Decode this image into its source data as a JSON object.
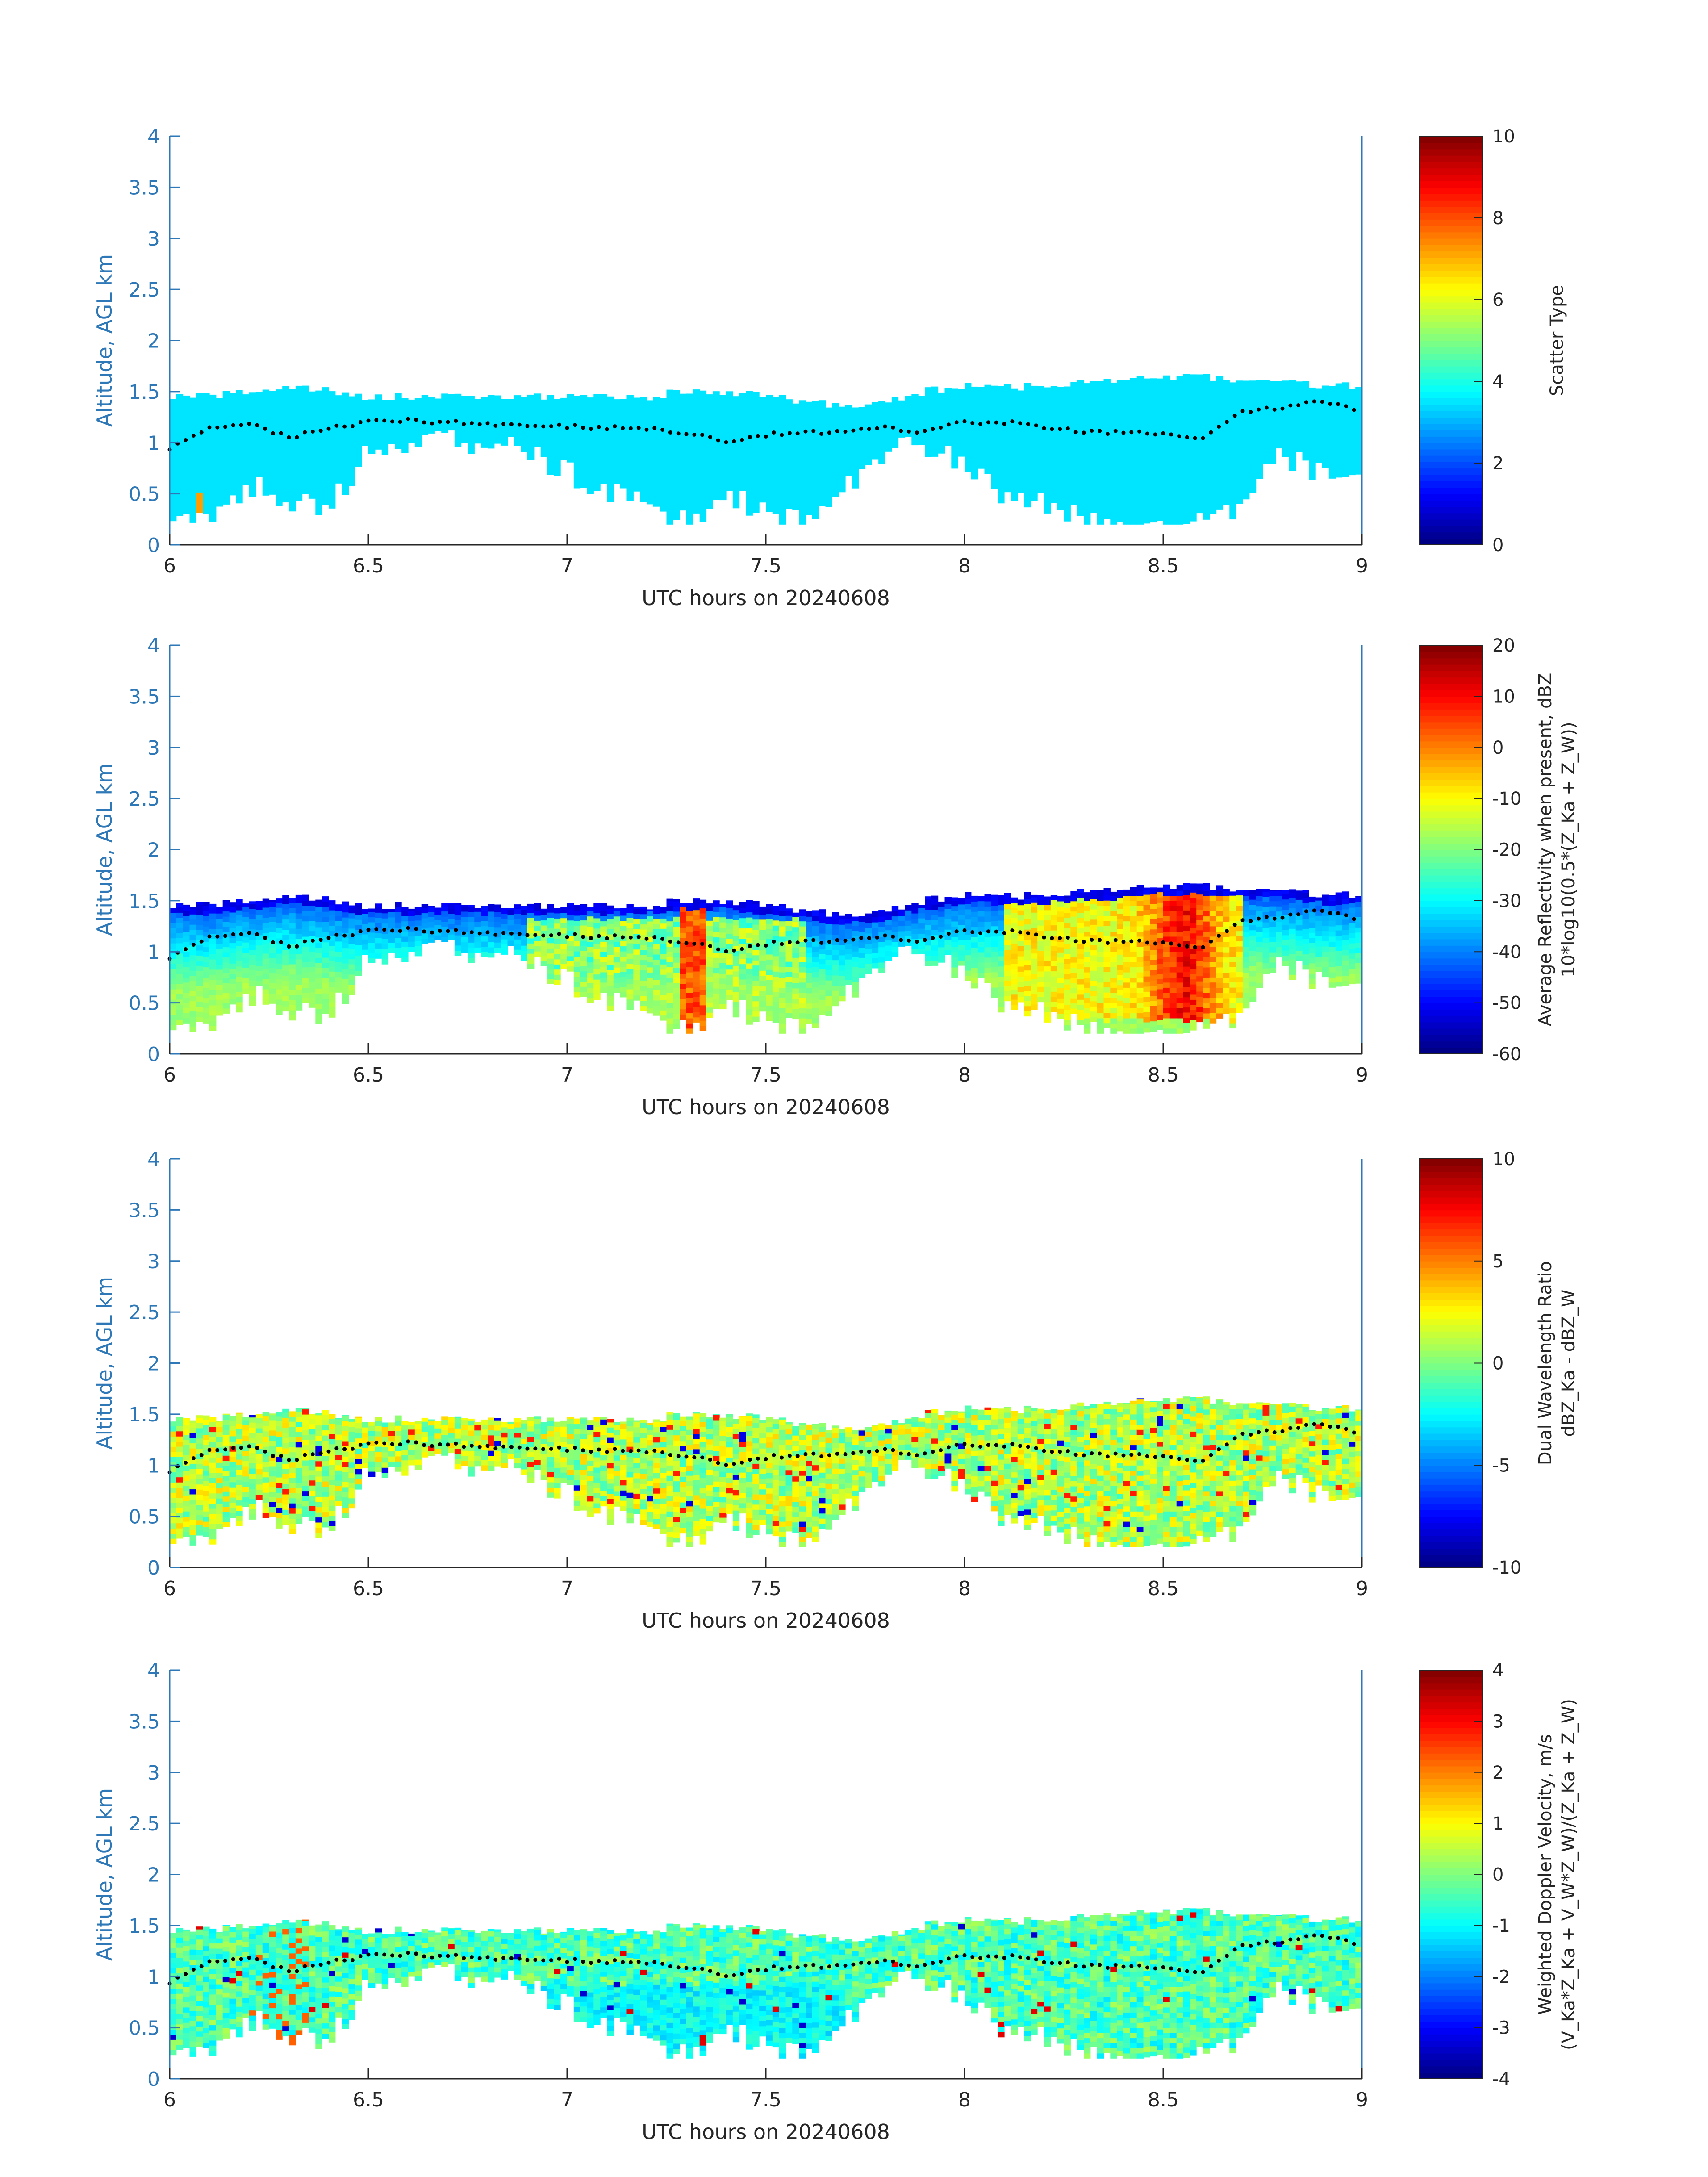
{
  "colors": {
    "axis_blue": "#2e78b8",
    "text_dark": "#262626",
    "scatter_fill": "#3df5d2",
    "scatter_accent": "#f04a17",
    "cloud_top_dots": "#000000"
  },
  "chart_data": [
    {
      "type": "heatmap",
      "xlabel": "UTC hours on 20240608",
      "ylabel": "Altitude, AGL km",
      "xlim": [
        6,
        9
      ],
      "ylim": [
        0,
        4
      ],
      "xticks": [
        "6",
        "6.5",
        "7",
        "7.5",
        "8",
        "8.5",
        "9"
      ],
      "yticks": [
        "0",
        "0.5",
        "1",
        "1.5",
        "2",
        "2.5",
        "3",
        "3.5",
        "4"
      ],
      "colorbar": {
        "label_lines": [
          "Scatter Type"
        ],
        "range": [
          0,
          10
        ],
        "ticks": [
          "0",
          "2",
          "4",
          "6",
          "8",
          "10"
        ]
      },
      "dominant_value": 3.5
    },
    {
      "type": "heatmap",
      "xlabel": "UTC hours on 20240608",
      "ylabel": "Altitude, AGL km",
      "xlim": [
        6,
        9
      ],
      "ylim": [
        0,
        4
      ],
      "xticks": [
        "6",
        "6.5",
        "7",
        "7.5",
        "8",
        "8.5",
        "9"
      ],
      "yticks": [
        "0",
        "0.5",
        "1",
        "1.5",
        "2",
        "2.5",
        "3",
        "3.5",
        "4"
      ],
      "colorbar": {
        "label_lines": [
          "Average Reflectivity when present, dBZ",
          "10*log10(0.5*(Z_Ka + Z_W))"
        ],
        "range": [
          -60,
          20
        ],
        "ticks": [
          "-60",
          "-50",
          "-40",
          "-30",
          "-20",
          "-10",
          "0",
          "10",
          "20"
        ]
      }
    },
    {
      "type": "heatmap",
      "xlabel": "UTC hours on 20240608",
      "ylabel": "Altitude, AGL km",
      "xlim": [
        6,
        9
      ],
      "ylim": [
        0,
        4
      ],
      "xticks": [
        "6",
        "6.5",
        "7",
        "7.5",
        "8",
        "8.5",
        "9"
      ],
      "yticks": [
        "0",
        "0.5",
        "1",
        "1.5",
        "2",
        "2.5",
        "3",
        "3.5",
        "4"
      ],
      "colorbar": {
        "label_lines": [
          "Dual Wavelength Ratio",
          "dBZ_Ka - dBZ_W"
        ],
        "range": [
          -10,
          10
        ],
        "ticks": [
          "-10",
          "-5",
          "0",
          "5",
          "10"
        ]
      }
    },
    {
      "type": "heatmap",
      "xlabel": "UTC hours on 20240608",
      "ylabel": "Altitude, AGL km",
      "xlim": [
        6,
        9
      ],
      "ylim": [
        0,
        4
      ],
      "xticks": [
        "6",
        "6.5",
        "7",
        "7.5",
        "8",
        "8.5",
        "9"
      ],
      "yticks": [
        "0",
        "0.5",
        "1",
        "1.5",
        "2",
        "2.5",
        "3",
        "3.5",
        "4"
      ],
      "colorbar": {
        "label_lines": [
          "Weighted Doppler Velocity, m/s",
          "(V_Ka*Z_Ka + V_W*Z_W)/(Z_Ka + Z_W)"
        ],
        "range": [
          -4,
          4
        ],
        "ticks": [
          "-4",
          "-3",
          "-2",
          "-1",
          "0",
          "1",
          "2",
          "3",
          "4"
        ]
      }
    }
  ],
  "cloud_profile": {
    "times": [
      6.0,
      6.1,
      6.2,
      6.3,
      6.4,
      6.5,
      6.6,
      6.7,
      6.8,
      6.9,
      7.0,
      7.1,
      7.2,
      7.3,
      7.4,
      7.5,
      7.6,
      7.7,
      7.8,
      7.9,
      8.0,
      8.1,
      8.2,
      8.3,
      8.4,
      8.5,
      8.6,
      8.7,
      8.8,
      8.9,
      9.0
    ],
    "top_km": [
      1.45,
      1.45,
      1.5,
      1.55,
      1.5,
      1.45,
      1.45,
      1.45,
      1.45,
      1.45,
      1.45,
      1.45,
      1.45,
      1.5,
      1.5,
      1.45,
      1.4,
      1.35,
      1.4,
      1.5,
      1.55,
      1.55,
      1.55,
      1.6,
      1.6,
      1.65,
      1.65,
      1.6,
      1.6,
      1.55,
      1.55
    ],
    "base_km": [
      0.3,
      0.3,
      0.6,
      0.4,
      0.4,
      0.9,
      1.0,
      1.0,
      1.0,
      0.9,
      0.7,
      0.5,
      0.4,
      0.2,
      0.5,
      0.3,
      0.2,
      0.6,
      0.9,
      1.0,
      0.8,
      0.5,
      0.4,
      0.3,
      0.2,
      0.2,
      0.2,
      0.4,
      0.9,
      0.7,
      0.6
    ],
    "dots_km": [
      0.95,
      1.15,
      1.2,
      1.05,
      1.15,
      1.2,
      1.22,
      1.2,
      1.18,
      1.17,
      1.16,
      1.15,
      1.13,
      1.1,
      1.0,
      1.08,
      1.1,
      1.1,
      1.15,
      1.1,
      1.2,
      1.2,
      1.15,
      1.1,
      1.1,
      1.1,
      1.05,
      1.3,
      1.35,
      1.4,
      1.3
    ]
  }
}
